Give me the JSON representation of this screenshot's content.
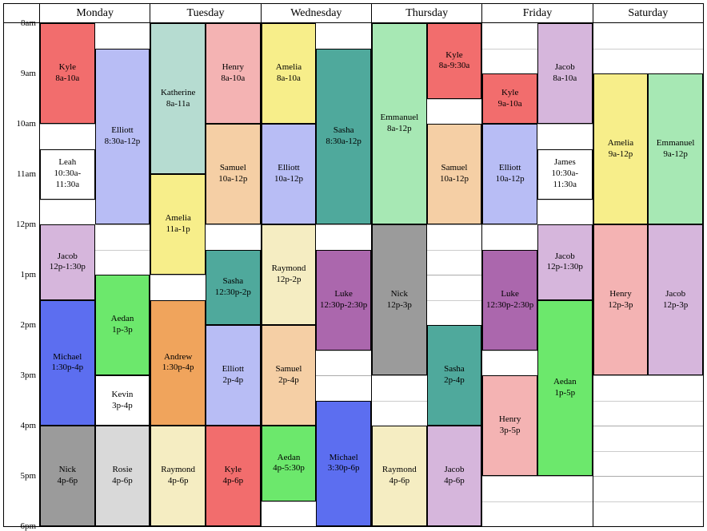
{
  "layout": {
    "startHour": 8,
    "endHour": 18,
    "slotMinutes": 30,
    "pxPerSlot": 31.5
  },
  "timeLabels": [
    "8am",
    "9am",
    "10am",
    "11am",
    "12pm",
    "1pm",
    "2pm",
    "3pm",
    "4pm",
    "5pm",
    "6pm"
  ],
  "days": [
    "Monday",
    "Tuesday",
    "Wednesday",
    "Thursday",
    "Friday",
    "Saturday"
  ],
  "colors": {
    "kyle": "#f26d6d",
    "elliott": "#b8bdf5",
    "leah": "#ffffff",
    "jacob": "#d6b6dc",
    "michael": "#5c6ef0",
    "aedan": "#6ce86c",
    "kevin": "#ffffff",
    "nick": "#9b9b9b",
    "rosie": "#d9d9d9",
    "katherine": "#b6dcd1",
    "amelia": "#f7ee8a",
    "henry": "#f4b3b3",
    "samuel": "#f5cfa5",
    "sasha": "#4fa99c",
    "andrew": "#f0a45c",
    "raymond": "#f5edc2",
    "emmanuel": "#a7e8b4",
    "luke": "#ab67ad",
    "james": "#ffffff",
    "gridline": "#cccccc"
  },
  "events": [
    {
      "day": 0,
      "lane": 0,
      "lanes": 2,
      "name": "Kyle",
      "time": "8a-10a",
      "start": 8,
      "end": 10,
      "color": "kyle"
    },
    {
      "day": 0,
      "lane": 1,
      "lanes": 2,
      "name": "Elliott",
      "time": "8:30a-12p",
      "start": 8.5,
      "end": 12,
      "color": "elliott"
    },
    {
      "day": 0,
      "lane": 0,
      "lanes": 2,
      "name": "Leah",
      "time": "10:30a-11:30a",
      "start": 10.5,
      "end": 11.5,
      "color": "leah"
    },
    {
      "day": 0,
      "lane": 0,
      "lanes": 2,
      "name": "Jacob",
      "time": "12p-1:30p",
      "start": 12,
      "end": 13.5,
      "color": "jacob"
    },
    {
      "day": 0,
      "lane": 1,
      "lanes": 2,
      "name": "Aedan",
      "time": "1p-3p",
      "start": 13,
      "end": 15,
      "color": "aedan"
    },
    {
      "day": 0,
      "lane": 0,
      "lanes": 2,
      "name": "Michael",
      "time": "1:30p-4p",
      "start": 13.5,
      "end": 16,
      "color": "michael"
    },
    {
      "day": 0,
      "lane": 1,
      "lanes": 2,
      "name": "Kevin",
      "time": "3p-4p",
      "start": 15,
      "end": 16,
      "color": "kevin"
    },
    {
      "day": 0,
      "lane": 0,
      "lanes": 2,
      "name": "Nick",
      "time": "4p-6p",
      "start": 16,
      "end": 18,
      "color": "nick"
    },
    {
      "day": 0,
      "lane": 1,
      "lanes": 2,
      "name": "Rosie",
      "time": "4p-6p",
      "start": 16,
      "end": 18,
      "color": "rosie"
    },
    {
      "day": 1,
      "lane": 0,
      "lanes": 2,
      "name": "Katherine",
      "time": "8a-11a",
      "start": 8,
      "end": 11,
      "color": "katherine"
    },
    {
      "day": 1,
      "lane": 1,
      "lanes": 2,
      "name": "Henry",
      "time": "8a-10a",
      "start": 8,
      "end": 10,
      "color": "henry"
    },
    {
      "day": 1,
      "lane": 1,
      "lanes": 2,
      "name": "Samuel",
      "time": "10a-12p",
      "start": 10,
      "end": 12,
      "color": "samuel"
    },
    {
      "day": 1,
      "lane": 0,
      "lanes": 2,
      "name": "Amelia",
      "time": "11a-1p",
      "start": 11,
      "end": 13,
      "color": "amelia"
    },
    {
      "day": 1,
      "lane": 1,
      "lanes": 2,
      "name": "Sasha",
      "time": "12:30p-2p",
      "start": 12.5,
      "end": 14,
      "color": "sasha"
    },
    {
      "day": 1,
      "lane": 0,
      "lanes": 2,
      "name": "Andrew",
      "time": "1:30p-4p",
      "start": 13.5,
      "end": 16,
      "color": "andrew"
    },
    {
      "day": 1,
      "lane": 1,
      "lanes": 2,
      "name": "Elliott",
      "time": "2p-4p",
      "start": 14,
      "end": 16,
      "color": "elliott"
    },
    {
      "day": 1,
      "lane": 0,
      "lanes": 2,
      "name": "Raymond",
      "time": "4p-6p",
      "start": 16,
      "end": 18,
      "color": "raymond"
    },
    {
      "day": 1,
      "lane": 1,
      "lanes": 2,
      "name": "Kyle",
      "time": "4p-6p",
      "start": 16,
      "end": 18,
      "color": "kyle"
    },
    {
      "day": 2,
      "lane": 0,
      "lanes": 2,
      "name": "Amelia",
      "time": "8a-10a",
      "start": 8,
      "end": 10,
      "color": "amelia"
    },
    {
      "day": 2,
      "lane": 1,
      "lanes": 2,
      "name": "Sasha",
      "time": "8:30a-12p",
      "start": 8.5,
      "end": 12,
      "color": "sasha"
    },
    {
      "day": 2,
      "lane": 0,
      "lanes": 2,
      "name": "Elliott",
      "time": "10a-12p",
      "start": 10,
      "end": 12,
      "color": "elliott"
    },
    {
      "day": 2,
      "lane": 0,
      "lanes": 2,
      "name": "Raymond",
      "time": "12p-2p",
      "start": 12,
      "end": 14,
      "color": "raymond"
    },
    {
      "day": 2,
      "lane": 1,
      "lanes": 2,
      "name": "Luke",
      "time": "12:30p-2:30p",
      "start": 12.5,
      "end": 14.5,
      "color": "luke"
    },
    {
      "day": 2,
      "lane": 0,
      "lanes": 2,
      "name": "Samuel",
      "time": "2p-4p",
      "start": 14,
      "end": 16,
      "color": "samuel"
    },
    {
      "day": 2,
      "lane": 1,
      "lanes": 2,
      "name": "Michael",
      "time": "3:30p-6p",
      "start": 15.5,
      "end": 18,
      "color": "michael"
    },
    {
      "day": 2,
      "lane": 0,
      "lanes": 2,
      "name": "Aedan",
      "time": "4p-5:30p",
      "start": 16,
      "end": 17.5,
      "color": "aedan"
    },
    {
      "day": 3,
      "lane": 0,
      "lanes": 2,
      "name": "Emmanuel",
      "time": "8a-12p",
      "start": 8,
      "end": 12,
      "color": "emmanuel"
    },
    {
      "day": 3,
      "lane": 1,
      "lanes": 2,
      "name": "Kyle",
      "time": "8a-9:30a",
      "start": 8,
      "end": 9.5,
      "color": "kyle"
    },
    {
      "day": 3,
      "lane": 1,
      "lanes": 2,
      "name": "Samuel",
      "time": "10a-12p",
      "start": 10,
      "end": 12,
      "color": "samuel"
    },
    {
      "day": 3,
      "lane": 0,
      "lanes": 2,
      "name": "Nick",
      "time": "12p-3p",
      "start": 12,
      "end": 15,
      "color": "nick"
    },
    {
      "day": 3,
      "lane": 1,
      "lanes": 2,
      "name": "Sasha",
      "time": "2p-4p",
      "start": 14,
      "end": 16,
      "color": "sasha"
    },
    {
      "day": 3,
      "lane": 0,
      "lanes": 2,
      "name": "Raymond",
      "time": "4p-6p",
      "start": 16,
      "end": 18,
      "color": "raymond"
    },
    {
      "day": 3,
      "lane": 1,
      "lanes": 2,
      "name": "Jacob",
      "time": "4p-6p",
      "start": 16,
      "end": 18,
      "color": "jacob"
    },
    {
      "day": 4,
      "lane": 1,
      "lanes": 2,
      "name": "Jacob",
      "time": "8a-10a",
      "start": 8,
      "end": 10,
      "color": "jacob"
    },
    {
      "day": 4,
      "lane": 0,
      "lanes": 2,
      "name": "Kyle",
      "time": "9a-10a",
      "start": 9,
      "end": 10,
      "color": "kyle"
    },
    {
      "day": 4,
      "lane": 0,
      "lanes": 2,
      "name": "Elliott",
      "time": "10a-12p",
      "start": 10,
      "end": 12,
      "color": "elliott"
    },
    {
      "day": 4,
      "lane": 1,
      "lanes": 2,
      "name": "James",
      "time": "10:30a-11:30a",
      "start": 10.5,
      "end": 11.5,
      "color": "james"
    },
    {
      "day": 4,
      "lane": 1,
      "lanes": 2,
      "name": "Jacob",
      "time": "12p-1:30p",
      "start": 12,
      "end": 13.5,
      "color": "jacob"
    },
    {
      "day": 4,
      "lane": 0,
      "lanes": 2,
      "name": "Luke",
      "time": "12:30p-2:30p",
      "start": 12.5,
      "end": 14.5,
      "color": "luke"
    },
    {
      "day": 4,
      "lane": 1,
      "lanes": 2,
      "name": "Aedan",
      "time": "1p-5p",
      "start": 13.5,
      "end": 17,
      "color": "aedan"
    },
    {
      "day": 4,
      "lane": 0,
      "lanes": 2,
      "name": "Henry",
      "time": "3p-5p",
      "start": 15,
      "end": 17,
      "color": "henry"
    },
    {
      "day": 5,
      "lane": 0,
      "lanes": 2,
      "name": "Amelia",
      "time": "9a-12p",
      "start": 9,
      "end": 12,
      "color": "amelia"
    },
    {
      "day": 5,
      "lane": 1,
      "lanes": 2,
      "name": "Emmanuel",
      "time": "9a-12p",
      "start": 9,
      "end": 12,
      "color": "emmanuel"
    },
    {
      "day": 5,
      "lane": 0,
      "lanes": 2,
      "name": "Henry",
      "time": "12p-3p",
      "start": 12,
      "end": 15,
      "color": "henry"
    },
    {
      "day": 5,
      "lane": 1,
      "lanes": 2,
      "name": "Jacob",
      "time": "12p-3p",
      "start": 12,
      "end": 15,
      "color": "jacob"
    }
  ]
}
